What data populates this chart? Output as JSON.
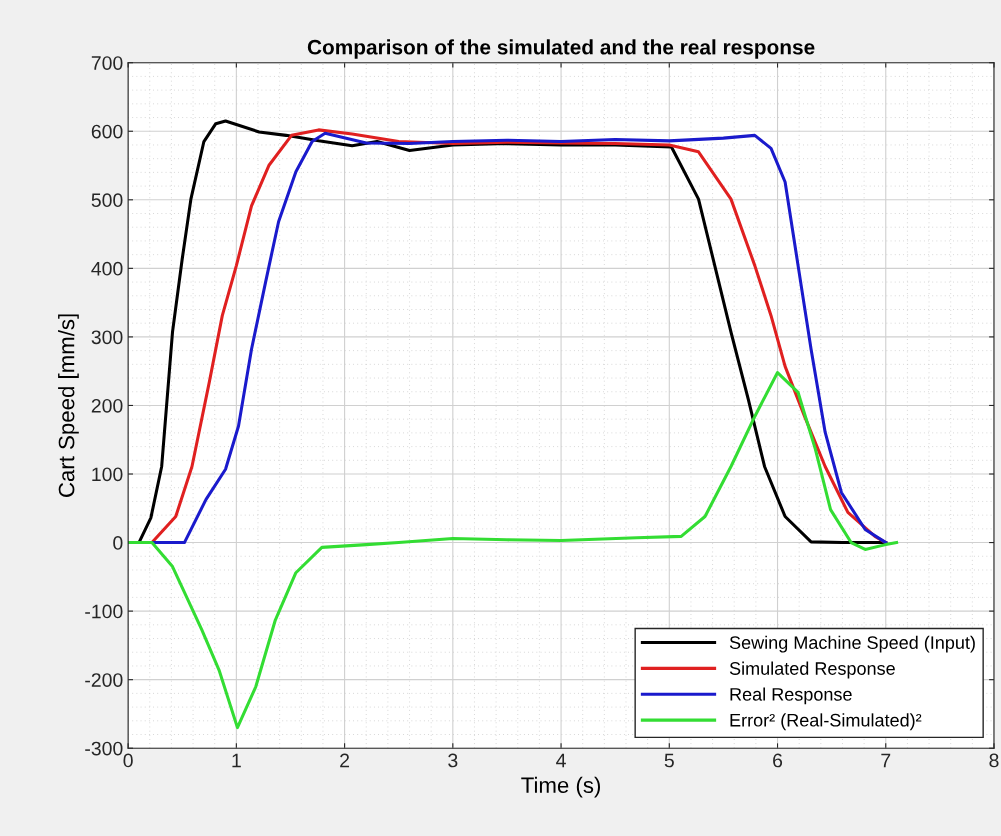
{
  "chart_data": {
    "type": "line",
    "title": "Comparison of the simulated and the real response",
    "xlabel": "Time (s)",
    "ylabel": "Cart Speed [mm/s]",
    "xlim": [
      0,
      8
    ],
    "ylim": [
      -300,
      700
    ],
    "xticks": [
      0,
      1,
      2,
      3,
      4,
      5,
      6,
      7,
      8
    ],
    "yticks": [
      -300,
      -200,
      -100,
      0,
      100,
      200,
      300,
      400,
      500,
      600,
      700
    ],
    "grid": true,
    "legend": "bottom right",
    "marker": "none",
    "line_style": "solid",
    "series": [
      {
        "name": "Sewing Machine Speed (Input)",
        "color": "#000000",
        "x": [
          0,
          0.1,
          0.21,
          0.31,
          0.41,
          0.5,
          0.58,
          0.7,
          0.81,
          0.9,
          1.21,
          1.46,
          1.76,
          2.07,
          2.3,
          2.6,
          3.0,
          3.5,
          4.0,
          4.5,
          5.02,
          5.27,
          5.42,
          5.57,
          5.73,
          5.88,
          6.07,
          6.31,
          6.6,
          7.0
        ],
        "values": [
          0,
          0,
          36,
          111,
          307,
          414,
          501,
          585,
          611,
          615,
          599,
          594,
          586,
          579,
          585,
          572,
          580,
          582,
          580,
          580,
          577,
          501,
          404,
          307,
          209,
          111,
          38,
          1,
          0,
          0
        ]
      },
      {
        "name": "Simulated Response",
        "color": "#e02020",
        "x": [
          0,
          0.22,
          0.44,
          0.59,
          0.75,
          0.87,
          1.0,
          1.14,
          1.3,
          1.51,
          1.76,
          2.07,
          2.5,
          3.0,
          3.5,
          4.0,
          4.5,
          5.0,
          5.27,
          5.57,
          5.79,
          5.94,
          6.07,
          6.25,
          6.44,
          6.65,
          6.9,
          7.0
        ],
        "values": [
          0,
          0,
          38,
          111,
          234,
          331,
          404,
          491,
          550,
          594,
          602,
          596,
          585,
          582,
          584,
          583,
          582,
          580,
          570,
          501,
          404,
          331,
          257,
          184,
          111,
          44,
          9,
          0
        ]
      },
      {
        "name": "Real Response",
        "color": "#1a1acc",
        "x": [
          0,
          0.52,
          0.72,
          0.9,
          1.02,
          1.14,
          1.27,
          1.39,
          1.55,
          1.7,
          1.82,
          2.2,
          2.6,
          3.0,
          3.5,
          4.0,
          4.5,
          5.0,
          5.5,
          5.79,
          5.94,
          6.07,
          6.19,
          6.31,
          6.44,
          6.59,
          6.81,
          7.0
        ],
        "values": [
          0,
          0,
          63,
          107,
          170,
          282,
          380,
          468,
          541,
          585,
          597,
          583,
          582,
          585,
          587,
          585,
          588,
          586,
          590,
          594,
          575,
          526,
          404,
          282,
          161,
          73,
          19,
          0
        ]
      },
      {
        "name": "Error² (Real-Simulated)²",
        "color": "#33dd33",
        "x": [
          0,
          0.22,
          0.41,
          0.68,
          0.84,
          1.01,
          1.18,
          1.36,
          1.55,
          1.79,
          2.2,
          2.5,
          3.0,
          3.5,
          4.0,
          4.7,
          5.11,
          5.33,
          5.57,
          5.79,
          6.0,
          6.19,
          6.35,
          6.49,
          6.68,
          6.81,
          7.0,
          7.1
        ],
        "values": [
          0,
          0,
          -35,
          -127,
          -186,
          -270,
          -210,
          -113,
          -44,
          -7,
          -3,
          0,
          6,
          4,
          3,
          7,
          9,
          38,
          111,
          184,
          248,
          219,
          136,
          48,
          0,
          -10,
          -3,
          0
        ]
      }
    ]
  }
}
